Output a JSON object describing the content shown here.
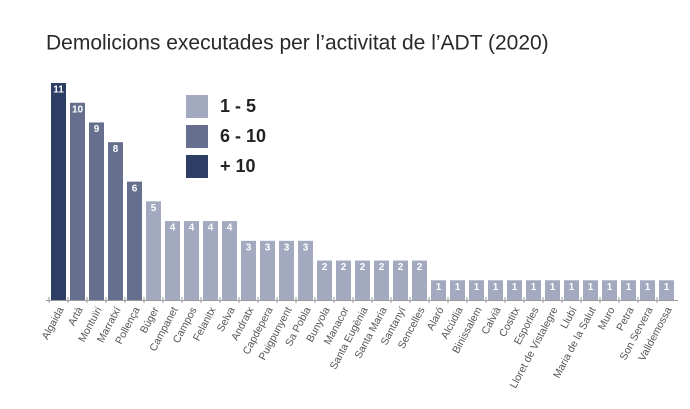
{
  "chart_data": {
    "type": "bar",
    "title": "Demolicions executades per l’activitat de l’ADT (2020)",
    "categories": [
      "Algaida",
      "Artà",
      "Montuïri",
      "Marratxí",
      "Pollença",
      "Búger",
      "Campanet",
      "Campos",
      "Felanitx",
      "Selva",
      "Andratx",
      "Capdepera",
      "Puigpunyent",
      "Sa Pobla",
      "Bunyola",
      "Manacor",
      "Santa Eugènia",
      "Santa Maria",
      "Santanyí",
      "Sencelles",
      "Alaró",
      "Alcúdia",
      "Binissalem",
      "Calvià",
      "Costitx",
      "Esporles",
      "Lloret de Vistalegre",
      "Llubí",
      "Maria de la Salut",
      "Muro",
      "Petra",
      "Son Servera",
      "Valldemossa"
    ],
    "values": [
      11,
      10,
      9,
      8,
      6,
      5,
      4,
      4,
      4,
      4,
      3,
      3,
      3,
      3,
      2,
      2,
      2,
      2,
      2,
      2,
      1,
      1,
      1,
      1,
      1,
      1,
      1,
      1,
      1,
      1,
      1,
      1,
      1
    ],
    "colors": [
      "#2e3d63",
      "#66708e",
      "#66708e",
      "#66708e",
      "#66708e",
      "#a3a9bf",
      "#a3a9bf",
      "#a3a9bf",
      "#a3a9bf",
      "#a3a9bf",
      "#a3a9bf",
      "#a3a9bf",
      "#a3a9bf",
      "#a3a9bf",
      "#a3a9bf",
      "#a3a9bf",
      "#a3a9bf",
      "#a3a9bf",
      "#a3a9bf",
      "#a3a9bf",
      "#a3a9bf",
      "#a3a9bf",
      "#a3a9bf",
      "#a3a9bf",
      "#a3a9bf",
      "#a3a9bf",
      "#a3a9bf",
      "#a3a9bf",
      "#a3a9bf",
      "#a3a9bf",
      "#a3a9bf",
      "#a3a9bf",
      "#a3a9bf"
    ],
    "legend": [
      {
        "label": "1 - 5",
        "color": "#a3a9bf"
      },
      {
        "label": "6 - 10",
        "color": "#66708e"
      },
      {
        "label": "+ 10",
        "color": "#2e3d63"
      }
    ],
    "ylim": [
      0,
      11
    ]
  }
}
